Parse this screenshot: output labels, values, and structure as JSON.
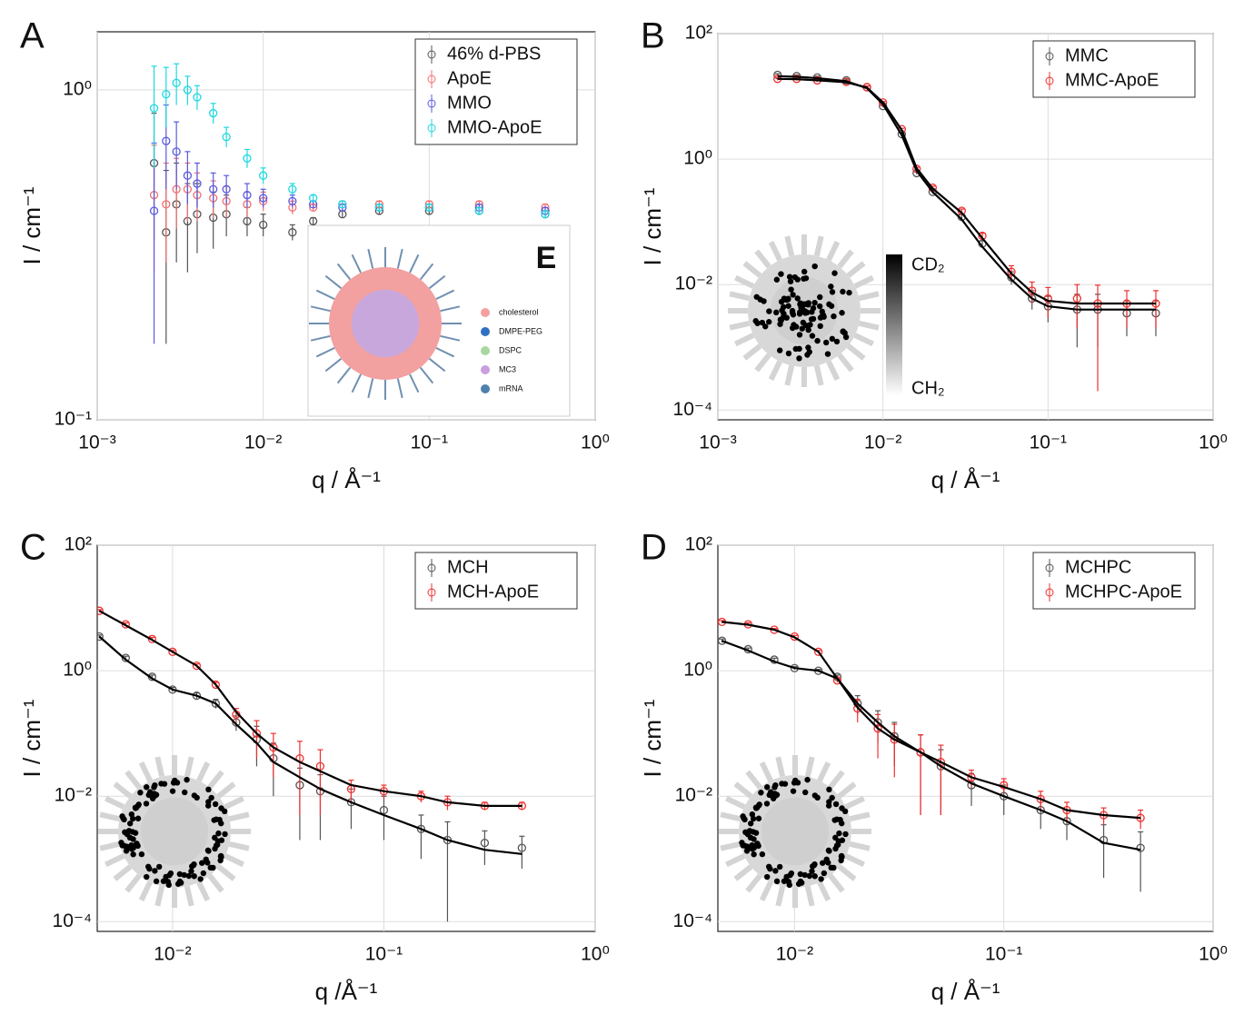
{
  "chart_data": [
    {
      "type": "scatter",
      "panel_label": "A",
      "xlabel": "q / Å⁻¹",
      "ylabel": "I / cm⁻¹",
      "log_x": true,
      "log_y": true,
      "grid": true,
      "legend": "top-right",
      "xlim": [
        0.001,
        1
      ],
      "ylim": [
        0.1,
        1.5
      ],
      "xticks": [
        {
          "value": 0.001,
          "label": "10⁻³"
        },
        {
          "value": 0.01,
          "label": "10⁻²"
        },
        {
          "value": 0.1,
          "label": "10⁻¹"
        },
        {
          "value": 1,
          "label": "10⁰"
        }
      ],
      "yticks": [
        {
          "value": 0.1,
          "label": "10⁻¹"
        },
        {
          "value": 1,
          "label": "10⁰"
        }
      ],
      "x": [
        0.0022,
        0.0026,
        0.003,
        0.0035,
        0.004,
        0.005,
        0.006,
        0.008,
        0.01,
        0.015,
        0.02,
        0.03,
        0.05,
        0.1,
        0.2,
        0.5
      ],
      "series": [
        {
          "name": "46% d-PBS",
          "color": "#555555",
          "values": [
            0.6,
            0.37,
            0.45,
            0.4,
            0.42,
            0.41,
            0.42,
            0.4,
            0.39,
            0.37,
            0.4,
            0.42,
            0.43,
            0.43,
            0.43,
            0.42
          ],
          "errors": [
            0.25,
            0.2,
            0.15,
            0.12,
            0.1,
            0.08,
            0.06,
            0.04,
            0.03,
            0.02,
            0.01,
            0.01,
            0.01,
            0.01,
            0.01,
            0.01
          ]
        },
        {
          "name": "ApoE",
          "color": "#f07070",
          "values": [
            0.48,
            0.45,
            0.5,
            0.5,
            0.48,
            0.47,
            0.46,
            0.45,
            0.46,
            0.44,
            0.44,
            0.45,
            0.45,
            0.45,
            0.45,
            0.44
          ],
          "errors": [
            0.2,
            0.15,
            0.12,
            0.1,
            0.08,
            0.06,
            0.05,
            0.04,
            0.03,
            0.02,
            0.01,
            0.01,
            0.01,
            0.01,
            0.01,
            0.01
          ]
        },
        {
          "name": "MMO",
          "color": "#5a5ae0",
          "values": [
            0.43,
            0.7,
            0.65,
            0.55,
            0.52,
            0.5,
            0.5,
            0.48,
            0.47,
            0.46,
            0.45,
            0.44,
            0.44,
            0.44,
            0.44,
            0.43
          ],
          "errors": [
            0.26,
            0.2,
            0.15,
            0.1,
            0.08,
            0.06,
            0.05,
            0.04,
            0.03,
            0.02,
            0.01,
            0.01,
            0.01,
            0.01,
            0.01,
            0.01
          ]
        },
        {
          "name": "MMO-ApoE",
          "color": "#1ed8e0",
          "values": [
            0.88,
            0.97,
            1.05,
            1.0,
            0.95,
            0.85,
            0.72,
            0.62,
            0.55,
            0.5,
            0.47,
            0.45,
            0.44,
            0.44,
            0.43,
            0.42
          ],
          "errors": [
            0.3,
            0.2,
            0.15,
            0.1,
            0.08,
            0.06,
            0.05,
            0.04,
            0.03,
            0.02,
            0.01,
            0.01,
            0.01,
            0.01,
            0.01,
            0.01
          ]
        }
      ],
      "inset": {
        "label": "E",
        "items": [
          "cholesterol",
          "DMPE-PEG",
          "DSPC",
          "MC3",
          "mRNA"
        ]
      }
    },
    {
      "type": "scatter",
      "panel_label": "B",
      "xlabel": "q / Å⁻¹",
      "ylabel": "I / cm⁻¹",
      "log_x": true,
      "log_y": true,
      "grid": true,
      "legend": "top-right",
      "xlim": [
        0.001,
        1
      ],
      "ylim": [
        7e-05,
        100
      ],
      "xticks": [
        {
          "value": 0.001,
          "label": "10⁻³"
        },
        {
          "value": 0.01,
          "label": "10⁻²"
        },
        {
          "value": 0.1,
          "label": "10⁻¹"
        },
        {
          "value": 1,
          "label": "10⁰"
        }
      ],
      "yticks": [
        {
          "value": 0.0001,
          "label": "10⁻⁴"
        },
        {
          "value": 0.01,
          "label": "10⁻²"
        },
        {
          "value": 1,
          "label": "10⁰"
        },
        {
          "value": 100,
          "label": "10²"
        }
      ],
      "x": [
        0.0023,
        0.003,
        0.004,
        0.006,
        0.008,
        0.01,
        0.013,
        0.016,
        0.02,
        0.03,
        0.04,
        0.06,
        0.08,
        0.1,
        0.15,
        0.2,
        0.3,
        0.45
      ],
      "series": [
        {
          "name": "MMC",
          "color": "#555555",
          "values": [
            22,
            21,
            20,
            18,
            14,
            7,
            2.5,
            0.6,
            0.3,
            0.12,
            0.045,
            0.013,
            0.006,
            0.0045,
            0.004,
            0.004,
            0.0035,
            0.0035
          ],
          "errors": [
            1,
            1,
            1,
            0.8,
            0.6,
            0.3,
            0.1,
            0.03,
            0.02,
            0.01,
            0.005,
            0.003,
            0.002,
            0.002,
            0.003,
            0.003,
            0.002,
            0.002
          ],
          "fit": [
            21,
            20.5,
            19.5,
            17.5,
            13.5,
            7.5,
            2.4,
            0.65,
            0.3,
            0.11,
            0.04,
            0.012,
            0.006,
            0.0045,
            0.004,
            0.004,
            0.004,
            0.004
          ]
        },
        {
          "name": "MMC-ApoE",
          "color": "#f03030",
          "values": [
            19,
            19,
            18,
            17,
            14,
            8,
            3,
            0.7,
            0.35,
            0.15,
            0.06,
            0.016,
            0.008,
            0.006,
            0.006,
            0.005,
            0.005,
            0.005
          ],
          "errors": [
            1,
            1,
            1,
            0.8,
            0.6,
            0.3,
            0.1,
            0.04,
            0.02,
            0.01,
            0.006,
            0.004,
            0.003,
            0.003,
            0.004,
            0.0048,
            0.003,
            0.003
          ],
          "fit": [
            19,
            18.8,
            18,
            16.8,
            13.8,
            8,
            2.9,
            0.72,
            0.34,
            0.14,
            0.055,
            0.015,
            0.0075,
            0.0055,
            0.005,
            0.005,
            0.005,
            0.005
          ]
        }
      ],
      "colorbar": {
        "top": "CD₂",
        "bottom": "CH₂"
      }
    },
    {
      "type": "scatter",
      "panel_label": "C",
      "xlabel": "q /Å⁻¹",
      "ylabel": "I / cm⁻¹",
      "log_x": true,
      "log_y": true,
      "grid": true,
      "legend": "top-right",
      "xlim": [
        0.0044,
        1
      ],
      "ylim": [
        7e-05,
        100
      ],
      "xticks": [
        {
          "value": 0.01,
          "label": "10⁻²"
        },
        {
          "value": 0.1,
          "label": "10⁻¹"
        },
        {
          "value": 1,
          "label": "10⁰"
        }
      ],
      "yticks": [
        {
          "value": 0.0001,
          "label": "10⁻⁴"
        },
        {
          "value": 0.01,
          "label": "10⁻²"
        },
        {
          "value": 1,
          "label": "10⁰"
        },
        {
          "value": 100,
          "label": "10²"
        }
      ],
      "x": [
        0.0045,
        0.006,
        0.008,
        0.01,
        0.013,
        0.016,
        0.02,
        0.025,
        0.03,
        0.04,
        0.05,
        0.07,
        0.1,
        0.15,
        0.2,
        0.3,
        0.45
      ],
      "series": [
        {
          "name": "MCH",
          "color": "#555555",
          "values": [
            3.5,
            1.6,
            0.8,
            0.5,
            0.4,
            0.3,
            0.15,
            0.08,
            0.04,
            0.015,
            0.012,
            0.008,
            0.006,
            0.003,
            0.002,
            0.0018,
            0.0015
          ],
          "errors": [
            0.2,
            0.1,
            0.05,
            0.04,
            0.04,
            0.05,
            0.04,
            0.05,
            0.03,
            0.013,
            0.01,
            0.005,
            0.004,
            0.002,
            0.0019,
            0.001,
            0.0008
          ],
          "fit": [
            3.5,
            1.5,
            0.75,
            0.5,
            0.4,
            0.3,
            0.14,
            0.07,
            0.035,
            0.02,
            0.013,
            0.008,
            0.005,
            0.003,
            0.002,
            0.0014,
            0.0012
          ]
        },
        {
          "name": "MCH-ApoE",
          "color": "#f03030",
          "values": [
            9,
            5.5,
            3.2,
            2,
            1.2,
            0.6,
            0.2,
            0.1,
            0.06,
            0.04,
            0.03,
            0.013,
            0.012,
            0.01,
            0.008,
            0.007,
            0.007
          ],
          "errors": [
            0.4,
            0.3,
            0.2,
            0.1,
            0.08,
            0.05,
            0.05,
            0.06,
            0.04,
            0.035,
            0.025,
            0.005,
            0.003,
            0.002,
            0.002,
            0.001,
            0.001
          ],
          "fit": [
            9,
            5.3,
            3.1,
            2,
            1.2,
            0.6,
            0.22,
            0.1,
            0.06,
            0.035,
            0.025,
            0.015,
            0.012,
            0.01,
            0.008,
            0.007,
            0.007
          ]
        }
      ]
    },
    {
      "type": "scatter",
      "panel_label": "D",
      "xlabel": "q / Å⁻¹",
      "ylabel": "I / cm⁻¹",
      "log_x": true,
      "log_y": true,
      "grid": true,
      "legend": "top-right",
      "xlim": [
        0.0043,
        1
      ],
      "ylim": [
        7e-05,
        100
      ],
      "xticks": [
        {
          "value": 0.01,
          "label": "10⁻²"
        },
        {
          "value": 0.1,
          "label": "10⁻¹"
        },
        {
          "value": 1,
          "label": "10⁰"
        }
      ],
      "yticks": [
        {
          "value": 0.0001,
          "label": "10⁻⁴"
        },
        {
          "value": 0.01,
          "label": "10⁻²"
        },
        {
          "value": 1,
          "label": "10⁰"
        },
        {
          "value": 100,
          "label": "10²"
        }
      ],
      "x": [
        0.0045,
        0.006,
        0.008,
        0.01,
        0.013,
        0.016,
        0.02,
        0.025,
        0.03,
        0.04,
        0.05,
        0.07,
        0.1,
        0.15,
        0.2,
        0.3,
        0.45
      ],
      "series": [
        {
          "name": "MCHPC",
          "color": "#555555",
          "values": [
            3,
            2.2,
            1.5,
            1.1,
            1,
            0.8,
            0.3,
            0.15,
            0.09,
            0.05,
            0.03,
            0.015,
            0.01,
            0.006,
            0.004,
            0.002,
            0.0015
          ],
          "errors": [
            0.2,
            0.1,
            0.08,
            0.06,
            0.05,
            0.05,
            0.1,
            0.08,
            0.06,
            0.045,
            0.025,
            0.008,
            0.005,
            0.003,
            0.002,
            0.0015,
            0.0012
          ],
          "fit": [
            3,
            2.1,
            1.4,
            1.1,
            1,
            0.75,
            0.3,
            0.15,
            0.09,
            0.05,
            0.03,
            0.016,
            0.01,
            0.006,
            0.004,
            0.0018,
            0.0014
          ]
        },
        {
          "name": "MCHPC-ApoE",
          "color": "#f03030",
          "values": [
            6,
            5.5,
            4.5,
            3.5,
            2,
            0.7,
            0.25,
            0.12,
            0.08,
            0.05,
            0.035,
            0.02,
            0.015,
            0.009,
            0.006,
            0.005,
            0.0045
          ],
          "errors": [
            0.3,
            0.3,
            0.2,
            0.15,
            0.1,
            0.05,
            0.1,
            0.08,
            0.06,
            0.045,
            0.03,
            0.006,
            0.004,
            0.003,
            0.002,
            0.0015,
            0.0015
          ],
          "fit": [
            6,
            5.4,
            4.5,
            3.4,
            2,
            0.75,
            0.26,
            0.12,
            0.08,
            0.05,
            0.035,
            0.02,
            0.014,
            0.009,
            0.006,
            0.005,
            0.0045
          ]
        }
      ]
    }
  ]
}
